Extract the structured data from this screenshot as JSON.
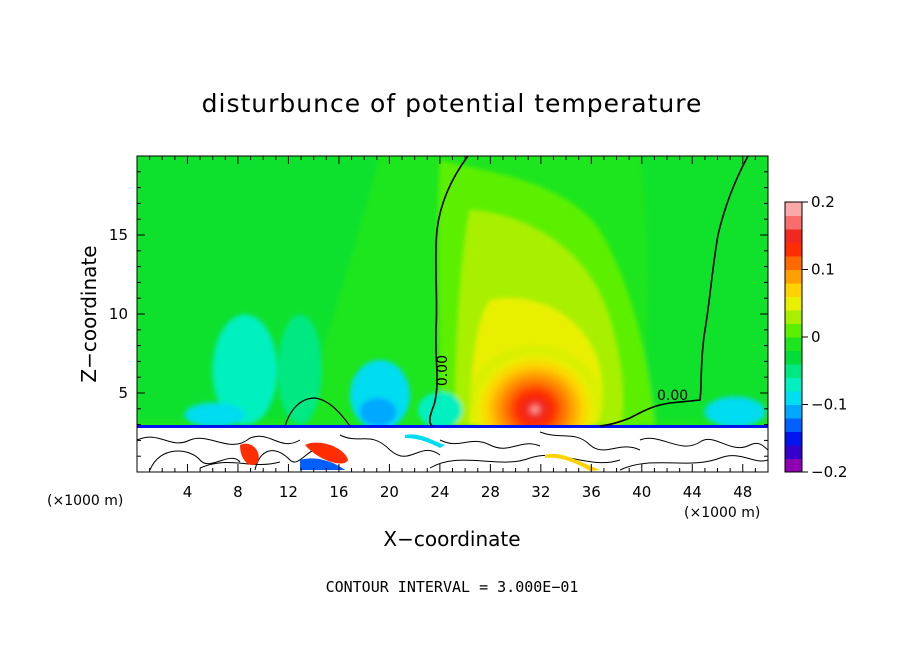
{
  "chart_data": {
    "type": "heatmap",
    "title": "disturbunce of potential temperature",
    "xlabel": "X−coordinate",
    "ylabel": "Z−coordinate",
    "x_unit_left": "(×1000 m)",
    "x_unit_right": "(×1000 m)",
    "x_ticks": [
      "4",
      "8",
      "12",
      "16",
      "20",
      "24",
      "28",
      "32",
      "36",
      "40",
      "44",
      "48"
    ],
    "y_ticks": [
      "5",
      "10",
      "15"
    ],
    "xlim": [
      0,
      50
    ],
    "ylim": [
      0,
      20
    ],
    "colorbar": {
      "min": -0.2,
      "max": 0.2,
      "tick_labels": [
        "0.2",
        "0.1",
        "0",
        "−0.1",
        "−0.2"
      ],
      "tick_values": [
        0.2,
        0.1,
        0,
        -0.1,
        -0.2
      ],
      "colors": [
        "#8e00b0",
        "#3500cc",
        "#0015ee",
        "#0060ff",
        "#00a8ff",
        "#00dcf0",
        "#00f0c0",
        "#00e882",
        "#00dc3a",
        "#1ee61e",
        "#5cf000",
        "#a8f000",
        "#e8f000",
        "#ffd200",
        "#ffa000",
        "#ff6a00",
        "#ff2d00",
        "#f02820",
        "#f86c6c",
        "#fca8a8"
      ]
    },
    "contour_labels": [
      "0.00",
      "0.00"
    ],
    "terrain_top_z": 3.0,
    "annotation": "CONTOUR INTERVAL = 3.000E−01"
  }
}
